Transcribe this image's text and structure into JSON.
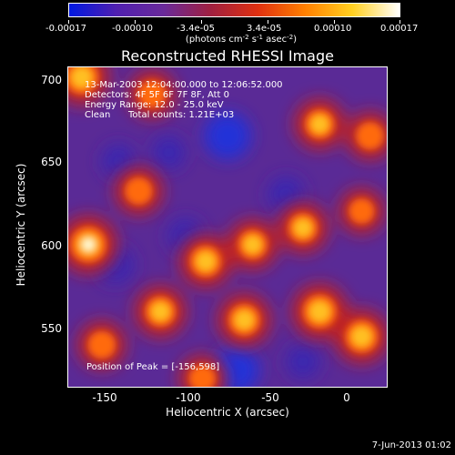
{
  "colorbar": {
    "tick_labels": [
      "-0.00017",
      "-0.00010",
      "-3.4e-05",
      "3.4e-05",
      "0.00010",
      "0.00017"
    ],
    "unit_main": "(photons cm",
    "unit_exp1": "-2",
    "unit_mid": " s",
    "unit_exp2": "-1",
    "unit_end": " asec",
    "unit_exp3": "-2",
    "unit_close": ")",
    "colors": [
      "#0018e0",
      "#5020b0",
      "#6a2a9a",
      "#a02040",
      "#e03010",
      "#ff8000",
      "#ffd020",
      "#ffffff"
    ]
  },
  "plot": {
    "title": "Reconstructed RHESSI Image",
    "annotations": {
      "time_range": "13-Mar-2003 12:04:00.000 to 12:06:52.000",
      "detectors": "Detectors: 4F 5F 6F 7F 8F, Att 0",
      "energy_range": "Energy Range: 12.0 - 25.0 keV",
      "algorithm": "Clean",
      "total_counts": "Total counts: 1.21E+03",
      "peak_position": "Position of Peak = [-156,598]"
    },
    "xlabel": "Heliocentric X (arcsec)",
    "ylabel": "Heliocentric Y (arcsec)",
    "xticks": [
      "-150",
      "-100",
      "-50",
      "0"
    ],
    "yticks": [
      "700",
      "650",
      "600",
      "550"
    ]
  },
  "footer": {
    "date": "7-Jun-2013 01:02"
  },
  "chart_data": {
    "type": "heatmap",
    "title": "Reconstructed RHESSI Image",
    "xlabel": "Heliocentric X (arcsec)",
    "ylabel": "Heliocentric Y (arcsec)",
    "xlim": [
      -170,
      20
    ],
    "ylim": [
      515,
      706
    ],
    "colorbar_range": [
      -0.00017,
      0.00017
    ],
    "peak": {
      "x": -156,
      "y": 598
    },
    "hotspots": [
      {
        "x": -158,
        "y": 600,
        "level": 1.0
      },
      {
        "x": -162,
        "y": 700,
        "level": 0.9
      },
      {
        "x": -128,
        "y": 632,
        "level": 0.6
      },
      {
        "x": -88,
        "y": 590,
        "level": 0.8
      },
      {
        "x": -60,
        "y": 600,
        "level": 0.7
      },
      {
        "x": -30,
        "y": 610,
        "level": 0.7
      },
      {
        "x": -115,
        "y": 560,
        "level": 0.75
      },
      {
        "x": -65,
        "y": 555,
        "level": 0.8
      },
      {
        "x": -20,
        "y": 560,
        "level": 0.9
      },
      {
        "x": 5,
        "y": 545,
        "level": 0.85
      },
      {
        "x": -20,
        "y": 672,
        "level": 0.7
      },
      {
        "x": -120,
        "y": 690,
        "level": 0.6
      },
      {
        "x": -150,
        "y": 540,
        "level": 0.6
      },
      {
        "x": 10,
        "y": 665,
        "level": 0.6
      },
      {
        "x": -90,
        "y": 520,
        "level": 0.55
      },
      {
        "x": 5,
        "y": 620,
        "level": 0.5
      }
    ],
    "coldspots": [
      {
        "x": -75,
        "y": 665,
        "level": 1.0
      },
      {
        "x": -70,
        "y": 525,
        "level": 1.0
      },
      {
        "x": -142,
        "y": 588,
        "level": 0.6
      },
      {
        "x": -110,
        "y": 655,
        "level": 0.4
      },
      {
        "x": -40,
        "y": 630,
        "level": 0.5
      },
      {
        "x": -100,
        "y": 605,
        "level": 0.5
      },
      {
        "x": -140,
        "y": 650,
        "level": 0.4
      },
      {
        "x": -30,
        "y": 530,
        "level": 0.4
      }
    ]
  }
}
